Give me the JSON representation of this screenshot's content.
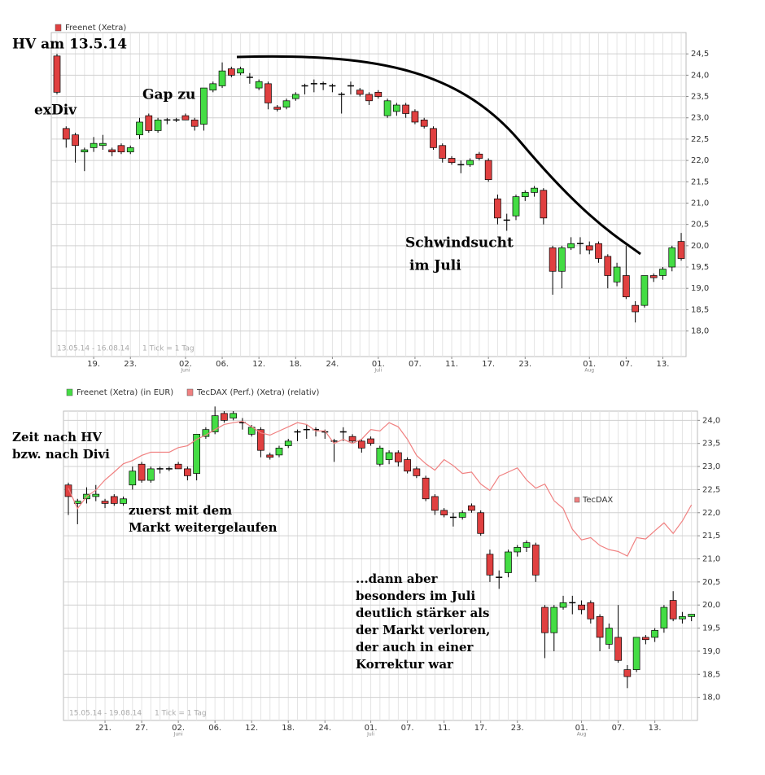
{
  "chart_data": [
    {
      "type": "candlestick",
      "categories": [
        null,
        null,
        null,
        null,
        "19.",
        null,
        null,
        null,
        "23.",
        null,
        null,
        null,
        null,
        null,
        "02.",
        null,
        null,
        null,
        "06.",
        null,
        null,
        null,
        "12.",
        null,
        null,
        null,
        "18.",
        null,
        null,
        null,
        "24.",
        null,
        null,
        null,
        null,
        "01.",
        null,
        null,
        null,
        "07.",
        null,
        null,
        null,
        "11.",
        null,
        null,
        null,
        "17.",
        null,
        null,
        null,
        "23.",
        null,
        null,
        null,
        null,
        null,
        null,
        "01.",
        null,
        null,
        null,
        "07.",
        null,
        null,
        null,
        "13.",
        null,
        null
      ],
      "month_labels": [
        "Juni",
        "Juli",
        "Aug"
      ],
      "series": [
        {
          "name": "Freenet (Xetra)",
          "color": "#e04040",
          "up_color": "#44dd44",
          "down_color": "#e04040",
          "open": [
            24.45,
            22.75,
            22.6,
            22.2,
            22.3,
            22.35,
            22.25,
            22.35,
            22.2,
            22.6,
            23.05,
            22.7,
            22.95,
            22.95,
            23.05,
            22.95,
            22.85,
            23.65,
            23.75,
            24.15,
            24.05,
            23.95,
            23.7,
            23.8,
            23.25,
            23.25,
            23.45,
            23.75,
            23.8,
            23.8,
            23.75,
            23.55,
            23.75,
            23.65,
            23.55,
            23.6,
            23.05,
            23.15,
            23.3,
            23.15,
            22.95,
            22.75,
            22.35,
            22.05,
            21.9,
            21.9,
            22.15,
            22.0,
            21.1,
            20.6,
            20.7,
            21.15,
            21.25,
            21.3,
            19.95,
            19.4,
            19.95,
            20.05,
            20.0,
            20.05,
            19.75,
            19.15,
            19.3,
            18.6,
            18.6,
            19.3,
            19.3,
            19.5,
            20.1
          ],
          "high": [
            24.5,
            22.8,
            22.65,
            22.3,
            22.55,
            22.6,
            22.3,
            22.4,
            22.35,
            23.0,
            23.1,
            23.0,
            23.0,
            23.0,
            23.1,
            23.0,
            23.7,
            23.85,
            24.3,
            24.2,
            24.2,
            24.05,
            23.9,
            23.85,
            23.3,
            23.45,
            23.6,
            23.8,
            23.9,
            23.85,
            23.8,
            23.6,
            23.85,
            23.7,
            23.6,
            23.65,
            23.45,
            23.35,
            23.35,
            23.2,
            23.0,
            22.8,
            22.4,
            22.1,
            22.0,
            22.05,
            22.2,
            22.05,
            21.2,
            20.75,
            21.2,
            21.3,
            21.4,
            21.35,
            20.0,
            20.0,
            20.2,
            20.2,
            20.1,
            20.1,
            19.8,
            19.6,
            20.0,
            18.7,
            19.3,
            19.35,
            19.5,
            20.0,
            20.3
          ],
          "low": [
            23.55,
            22.3,
            21.95,
            21.75,
            22.2,
            22.25,
            22.1,
            22.15,
            22.15,
            22.5,
            22.65,
            22.65,
            22.85,
            22.9,
            22.95,
            22.7,
            22.7,
            23.6,
            23.7,
            23.95,
            24.0,
            23.8,
            23.65,
            23.2,
            23.15,
            23.2,
            23.4,
            23.55,
            23.6,
            23.65,
            23.6,
            23.1,
            23.55,
            23.5,
            23.3,
            23.45,
            23.0,
            23.05,
            23.0,
            22.85,
            22.75,
            22.25,
            21.95,
            21.9,
            21.7,
            21.85,
            22.0,
            21.5,
            20.5,
            20.35,
            20.6,
            21.05,
            21.15,
            20.5,
            18.85,
            19.0,
            19.9,
            19.8,
            19.8,
            19.6,
            19.0,
            19.05,
            18.75,
            18.2,
            18.55,
            19.15,
            19.2,
            19.4,
            19.65
          ],
          "close": [
            23.6,
            22.5,
            22.35,
            22.25,
            22.4,
            22.4,
            22.2,
            22.2,
            22.3,
            22.9,
            22.7,
            22.95,
            22.95,
            22.95,
            22.95,
            22.8,
            23.7,
            23.8,
            24.1,
            24.0,
            24.15,
            23.95,
            23.85,
            23.35,
            23.2,
            23.4,
            23.55,
            23.75,
            23.8,
            23.8,
            23.75,
            23.55,
            23.75,
            23.55,
            23.4,
            23.5,
            23.4,
            23.3,
            23.1,
            22.9,
            22.8,
            22.3,
            22.05,
            21.95,
            21.9,
            22.0,
            22.05,
            21.55,
            20.65,
            20.6,
            21.15,
            21.25,
            21.35,
            20.65,
            19.4,
            19.95,
            20.05,
            20.05,
            19.9,
            19.7,
            19.3,
            19.5,
            18.8,
            18.45,
            19.3,
            19.25,
            19.45,
            19.95,
            19.7
          ]
        }
      ],
      "ylim": [
        17.4,
        25.0
      ],
      "yticks": [
        {
          "value": 18.0,
          "label": "18,0"
        },
        {
          "value": 18.5,
          "label": "18,5"
        },
        {
          "value": 19.0,
          "label": "19,0"
        },
        {
          "value": 19.5,
          "label": "19,5"
        },
        {
          "value": 20.0,
          "label": "20,0"
        },
        {
          "value": 20.5,
          "label": "20,5"
        },
        {
          "value": 21.0,
          "label": "21,0"
        },
        {
          "value": 21.5,
          "label": "21,5"
        },
        {
          "value": 22.0,
          "label": "22,0"
        },
        {
          "value": 22.5,
          "label": "22,5"
        },
        {
          "value": 23.0,
          "label": "23,0"
        },
        {
          "value": 23.5,
          "label": "23,5"
        },
        {
          "value": 24.0,
          "label": "24,0"
        },
        {
          "value": 24.5,
          "label": "24,5"
        }
      ],
      "grid": true,
      "period": "13.05.14 - 16.08.14",
      "tick_note": "1 Tick = 1 Tag",
      "annotations": [
        "HV am 13.5.14",
        "exDiv",
        "Gap zu",
        "Schwindsucht",
        "im Juli"
      ]
    },
    {
      "type": "candlestick",
      "categories": [
        null,
        null,
        null,
        null,
        "21.",
        null,
        null,
        null,
        "27.",
        null,
        null,
        null,
        "02.",
        null,
        null,
        null,
        "06.",
        null,
        null,
        null,
        "12.",
        null,
        null,
        null,
        "18.",
        null,
        null,
        null,
        "24.",
        null,
        null,
        null,
        null,
        "01.",
        null,
        null,
        null,
        "07.",
        null,
        null,
        null,
        "11.",
        null,
        null,
        null,
        "17.",
        null,
        null,
        null,
        "23.",
        null,
        null,
        null,
        null,
        null,
        null,
        "01.",
        null,
        null,
        null,
        "07.",
        null,
        null,
        null,
        "13.",
        null,
        null,
        null,
        null
      ],
      "month_labels": [
        "Juni",
        "Juli",
        "Aug"
      ],
      "series": [
        {
          "name": "Freenet (Xetra) (in EUR)",
          "color": "#44dd44",
          "up_color": "#44dd44",
          "down_color": "#e04040",
          "open": [
            22.6,
            22.2,
            22.3,
            22.35,
            22.25,
            22.35,
            22.2,
            22.6,
            23.05,
            22.7,
            22.95,
            22.95,
            23.05,
            22.95,
            22.85,
            23.65,
            23.75,
            24.15,
            24.05,
            23.95,
            23.7,
            23.8,
            23.25,
            23.25,
            23.45,
            23.75,
            23.8,
            23.8,
            23.75,
            23.55,
            23.75,
            23.65,
            23.55,
            23.6,
            23.05,
            23.15,
            23.3,
            23.15,
            22.95,
            22.75,
            22.35,
            22.05,
            21.9,
            21.9,
            22.15,
            22.0,
            21.1,
            20.6,
            20.7,
            21.15,
            21.25,
            21.3,
            19.95,
            19.4,
            19.95,
            20.05,
            20.0,
            20.05,
            19.75,
            19.15,
            19.3,
            18.6,
            18.6,
            19.3,
            19.3,
            19.5,
            20.1,
            19.7,
            19.75
          ],
          "high": [
            22.65,
            22.3,
            22.55,
            22.6,
            22.3,
            22.4,
            22.35,
            23.0,
            23.1,
            23.0,
            23.0,
            23.0,
            23.1,
            23.0,
            23.7,
            23.85,
            24.3,
            24.2,
            24.2,
            24.05,
            23.9,
            23.85,
            23.3,
            23.45,
            23.6,
            23.8,
            23.9,
            23.85,
            23.8,
            23.6,
            23.85,
            23.7,
            23.6,
            23.65,
            23.45,
            23.35,
            23.35,
            23.2,
            23.0,
            22.8,
            22.4,
            22.1,
            22.0,
            22.05,
            22.2,
            22.05,
            21.2,
            20.75,
            21.2,
            21.3,
            21.4,
            21.35,
            20.0,
            20.0,
            20.2,
            20.2,
            20.1,
            20.1,
            19.8,
            19.6,
            20.0,
            18.7,
            19.3,
            19.35,
            19.5,
            20.0,
            20.3,
            19.85,
            19.8
          ],
          "low": [
            21.95,
            21.75,
            22.2,
            22.25,
            22.1,
            22.15,
            22.15,
            22.5,
            22.65,
            22.65,
            22.85,
            22.9,
            22.95,
            22.7,
            22.7,
            23.6,
            23.7,
            23.95,
            24.0,
            23.8,
            23.65,
            23.2,
            23.15,
            23.2,
            23.4,
            23.55,
            23.6,
            23.65,
            23.6,
            23.1,
            23.55,
            23.5,
            23.3,
            23.45,
            23.0,
            23.05,
            23.0,
            22.85,
            22.75,
            22.25,
            21.95,
            21.9,
            21.7,
            21.85,
            22.0,
            21.5,
            20.5,
            20.35,
            20.6,
            21.05,
            21.15,
            20.5,
            18.85,
            19.0,
            19.9,
            19.8,
            19.8,
            19.6,
            19.0,
            19.05,
            18.75,
            18.2,
            18.55,
            19.15,
            19.2,
            19.4,
            19.65,
            19.6,
            19.65
          ],
          "close": [
            22.35,
            22.25,
            22.4,
            22.4,
            22.2,
            22.2,
            22.3,
            22.9,
            22.7,
            22.95,
            22.95,
            22.95,
            22.95,
            22.8,
            23.7,
            23.8,
            24.1,
            24.0,
            24.15,
            23.95,
            23.85,
            23.35,
            23.2,
            23.4,
            23.55,
            23.75,
            23.8,
            23.8,
            23.75,
            23.55,
            23.75,
            23.55,
            23.4,
            23.5,
            23.4,
            23.3,
            23.1,
            22.9,
            22.8,
            22.3,
            22.05,
            21.95,
            21.9,
            22.0,
            22.05,
            21.55,
            20.65,
            20.6,
            21.15,
            21.25,
            21.35,
            20.65,
            19.4,
            19.95,
            20.05,
            20.05,
            19.9,
            19.7,
            19.3,
            19.5,
            18.8,
            18.45,
            19.3,
            19.25,
            19.45,
            19.95,
            19.7,
            19.75,
            19.8
          ]
        },
        {
          "name": "TecDAX (Perf.) (Xetra) (relativ)",
          "type": "line",
          "color": "#f08080",
          "label": "TecDAX",
          "values": [
            22.53,
            22.09,
            22.35,
            22.49,
            22.71,
            22.88,
            23.06,
            23.13,
            23.24,
            23.31,
            23.31,
            23.31,
            23.41,
            23.45,
            23.59,
            23.68,
            23.8,
            23.91,
            23.95,
            23.98,
            23.86,
            23.73,
            23.68,
            23.77,
            23.86,
            23.95,
            23.91,
            23.77,
            23.77,
            23.5,
            23.59,
            23.5,
            23.59,
            23.8,
            23.77,
            23.95,
            23.86,
            23.59,
            23.24,
            23.06,
            22.92,
            23.15,
            23.02,
            22.85,
            22.88,
            22.62,
            22.48,
            22.79,
            22.88,
            22.97,
            22.71,
            22.53,
            22.62,
            22.26,
            22.09,
            21.64,
            21.41,
            21.46,
            21.29,
            21.2,
            21.16,
            21.06,
            21.46,
            21.43,
            21.61,
            21.78,
            21.55,
            21.82,
            22.17
          ]
        }
      ],
      "ylim": [
        17.5,
        24.2
      ],
      "yticks": [
        {
          "value": 18.0,
          "label": "18,0"
        },
        {
          "value": 18.5,
          "label": "18,5"
        },
        {
          "value": 19.0,
          "label": "19,0"
        },
        {
          "value": 19.5,
          "label": "19,5"
        },
        {
          "value": 20.0,
          "label": "20,0"
        },
        {
          "value": 20.5,
          "label": "20,5"
        },
        {
          "value": 21.0,
          "label": "21,0"
        },
        {
          "value": 21.5,
          "label": "21,5"
        },
        {
          "value": 22.0,
          "label": "22,0"
        },
        {
          "value": 22.5,
          "label": "22,5"
        },
        {
          "value": 23.0,
          "label": "23,0"
        },
        {
          "value": 23.5,
          "label": "23,5"
        },
        {
          "value": 24.0,
          "label": "24,0"
        }
      ],
      "grid": true,
      "period": "15.05.14 - 19.08.14",
      "tick_note": "1 Tick = 1 Tag",
      "annotations": [
        "Zeit nach HV",
        "bzw. nach Divi",
        "zuerst mit dem",
        "Markt weitergelaufen",
        "...dann aber",
        "besonders im Juli",
        "deutlich stärker als",
        "der Markt verloren,",
        "der auch in einer",
        "Korrektur war"
      ]
    }
  ]
}
